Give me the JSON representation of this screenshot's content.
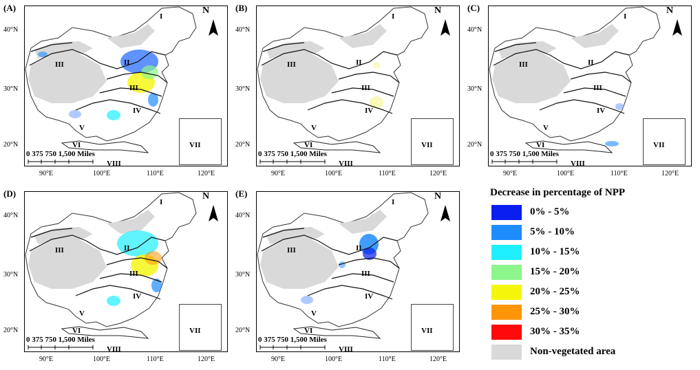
{
  "panels": [
    {
      "label": "(A)",
      "id": "a"
    },
    {
      "label": "(B)",
      "id": "b"
    },
    {
      "label": "(C)",
      "id": "c"
    },
    {
      "label": "(D)",
      "id": "d"
    },
    {
      "label": "(E)",
      "id": "e"
    }
  ],
  "axes": {
    "lat_ticks": [
      "40°N",
      "30°N",
      "20°N"
    ],
    "lon_ticks": [
      "90°E",
      "100°E",
      "110°E",
      "120°E"
    ]
  },
  "map": {
    "scale_label": "0   375 750     1,500 Miles",
    "north_label": "N",
    "regions": [
      "I",
      "II",
      "III",
      "III",
      "IV",
      "V",
      "VI",
      "VII",
      "VIII"
    ]
  },
  "legend": {
    "title": "Decrease in percentage of NPP",
    "items": [
      {
        "label": "0% - 5%",
        "color": "#0a1ef0"
      },
      {
        "label": "5% - 10%",
        "color": "#1e8cff"
      },
      {
        "label": "10% - 15%",
        "color": "#1ef0ff"
      },
      {
        "label": "15% - 20%",
        "color": "#8cf58c"
      },
      {
        "label": "20% - 25%",
        "color": "#f5f50a"
      },
      {
        "label": "25% - 30%",
        "color": "#ff960a"
      },
      {
        "label": "30% - 35%",
        "color": "#ff0a0a"
      },
      {
        "label": "Non-vegetated area",
        "color": "#d9d9d9"
      }
    ]
  }
}
